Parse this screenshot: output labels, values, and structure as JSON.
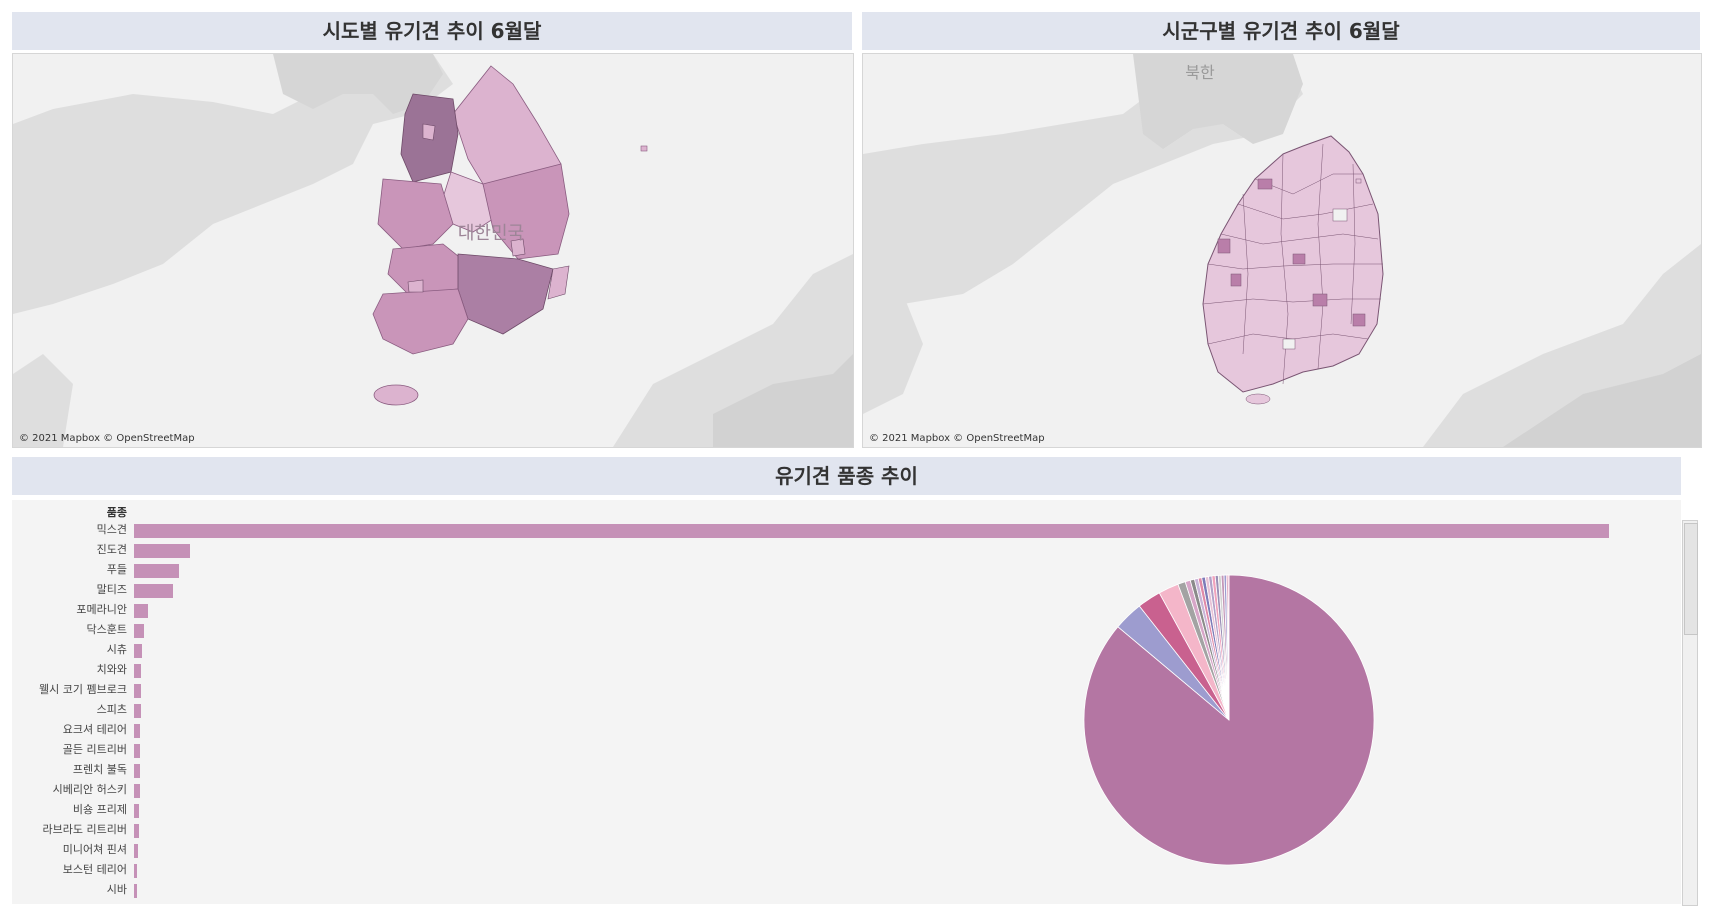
{
  "panels": {
    "province_map": {
      "title": "시도별 유기견 추이 6월달",
      "attribution": "© 2021 Mapbox © OpenStreetMap",
      "country_label": "대한민국"
    },
    "district_map": {
      "title": "시군구별 유기견 추이 6월달",
      "attribution": "© 2021 Mapbox © OpenStreetMap",
      "country_label": "북한"
    },
    "breed_chart": {
      "title": "유기견 품종 추이"
    }
  },
  "colors": {
    "bar": "#c591b7",
    "pie_main": "#b476a3",
    "pie_others": [
      "#9d9ccf",
      "#c9618f",
      "#f4b6c9",
      "#a3a3a3",
      "#d7a6c8",
      "#8a8a8a",
      "#c9b4d8",
      "#e08aa8",
      "#7d7bb8",
      "#e7c2d6",
      "#b2a1c8",
      "#f0a3bd",
      "#9a8fb5",
      "#d2d2d2",
      "#c497b8"
    ]
  },
  "chart_data": {
    "type": "bar",
    "ylabel": "품종",
    "categories": [
      "믹스견",
      "진도견",
      "푸들",
      "말티즈",
      "포메라니안",
      "닥스훈트",
      "시츄",
      "치와와",
      "웰시 코기 펨브로크",
      "스피츠",
      "요크셔 테리어",
      "골든 리트리버",
      "프렌치 불독",
      "시베리안 허스키",
      "비숑 프리제",
      "라브라도 리트리버",
      "미니어쳐 핀셔",
      "보스턴 테리어",
      "시바"
    ],
    "values": [
      3280,
      125,
      100,
      86,
      32,
      22,
      18,
      16,
      15,
      15,
      14,
      14,
      14,
      13,
      12,
      12,
      10,
      6,
      5
    ],
    "pie": {
      "type": "pie",
      "labels": [
        "믹스견",
        "진도견",
        "푸들",
        "말티즈",
        "포메라니안",
        "닥스훈트",
        "시츄",
        "치와와",
        "웰시 코기 펨브로크",
        "스피츠",
        "요크셔 테리어",
        "골든 리트리버",
        "프렌치 불독",
        "시베리안 허스키",
        "비숑 프리제",
        "라브라도 리트리버",
        "미니어쳐 핀셔",
        "보스턴 테리어",
        "시바"
      ],
      "values": [
        3280,
        125,
        100,
        86,
        32,
        22,
        18,
        16,
        15,
        15,
        14,
        14,
        14,
        13,
        12,
        12,
        10,
        6,
        5
      ]
    }
  }
}
